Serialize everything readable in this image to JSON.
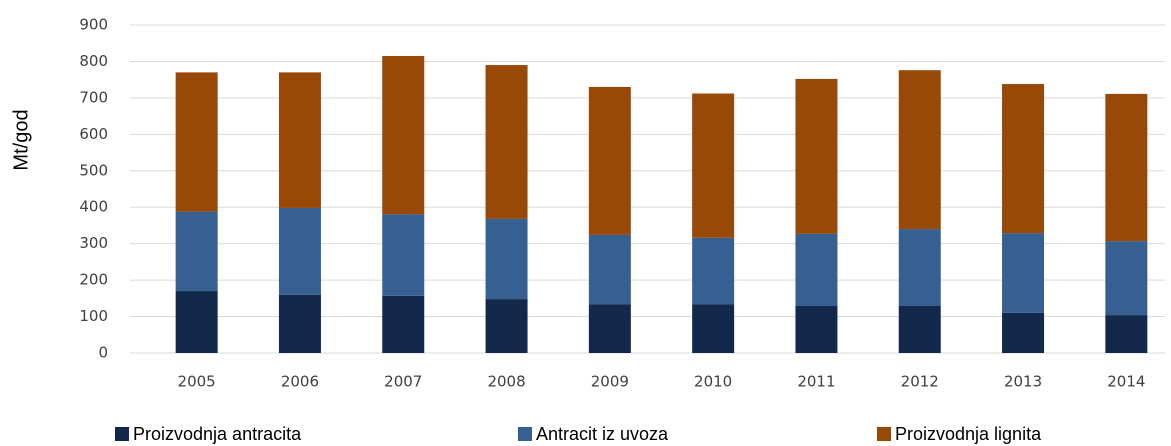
{
  "chart_data": {
    "type": "stacked_bar",
    "y_label": "Mt/god",
    "categories": [
      "2005",
      "2006",
      "2007",
      "2008",
      "2009",
      "2010",
      "2011",
      "2012",
      "2013",
      "2014"
    ],
    "series": [
      {
        "name": "Proizvodnja antracita",
        "color": "#13294b",
        "values": [
          170,
          160,
          157,
          148,
          134,
          134,
          129,
          129,
          110,
          104
        ]
      },
      {
        "name": "Antracit iz uvoza",
        "color": "#376092",
        "values": [
          218,
          238,
          224,
          220,
          190,
          182,
          198,
          211,
          219,
          203
        ]
      },
      {
        "name": "Proizvodnja lignita",
        "color": "#984807",
        "values": [
          382,
          372,
          434,
          422,
          406,
          396,
          425,
          436,
          409,
          404
        ]
      }
    ],
    "ylim": [
      0,
      900
    ],
    "yticks": [
      0,
      100,
      200,
      300,
      400,
      500,
      600,
      700,
      800,
      900
    ],
    "grid": true,
    "legend": "bottom"
  }
}
